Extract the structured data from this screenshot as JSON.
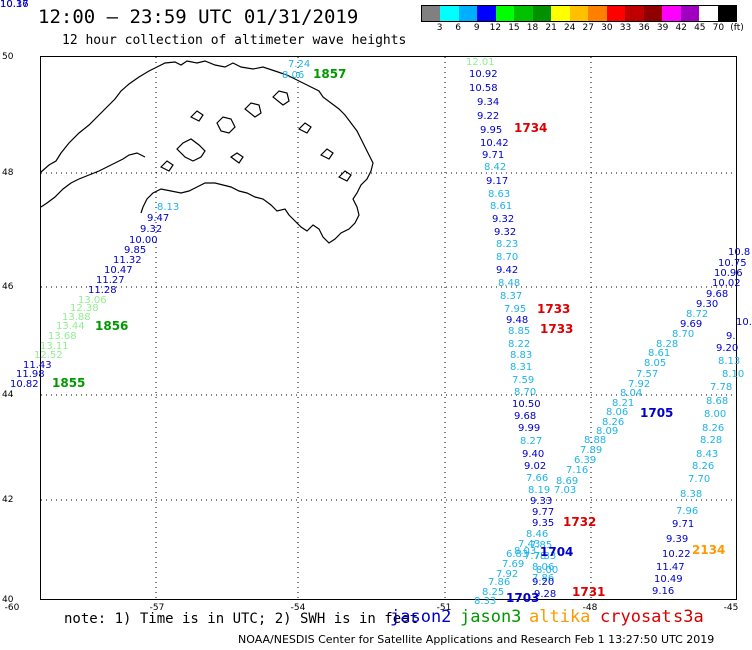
{
  "header": {
    "title": "12:00 — 23:59 UTC 01/31/2019",
    "subtitle": "12 hour collection of altimeter wave heights"
  },
  "scale": {
    "colors": [
      "#808080",
      "#00ffff",
      "#00b0ff",
      "#0000ff",
      "#00ff00",
      "#00c000",
      "#009000",
      "#ffff00",
      "#ffc000",
      "#ff8000",
      "#ff0000",
      "#c00000",
      "#900000",
      "#ff00ff",
      "#a000c0",
      "#ffffff",
      "#000000"
    ],
    "labels": [
      "3",
      "6",
      "9",
      "12",
      "15",
      "18",
      "21",
      "24",
      "27",
      "30",
      "33",
      "36",
      "39",
      "42",
      "45",
      "70",
      "(ft)"
    ]
  },
  "axes": {
    "lat_labels": [
      "50",
      "48",
      "46",
      "44",
      "42",
      "40"
    ],
    "lon_labels": [
      "-60",
      "-57",
      "-54",
      "-51",
      "-48",
      "-45"
    ]
  },
  "colors": {
    "jason2": "#0000cc",
    "jason3": "#009900",
    "altika": "#ff9900",
    "cryosat": "#dd0000",
    "s3a": "#cc0000",
    "light_green": "#90ee90",
    "light_blue": "#1fb4e6"
  },
  "note": "note: 1) Time is in UTC; 2) SWH is in feet",
  "legend": {
    "jason2": "jason2",
    "jason3": "jason3",
    "altika": "altika",
    "cryosat": "cryosat",
    "s3a": "s3a"
  },
  "footer": "NOAA/NESDIS Center for Satellite Applications and Research  Feb  1 13:27:50 UTC 2019",
  "passes": [
    {
      "label": "1857",
      "color": "#009900"
    },
    {
      "label": "1856",
      "color": "#009900"
    },
    {
      "label": "1855",
      "color": "#009900"
    },
    {
      "label": "1734",
      "color": "#dd0000"
    },
    {
      "label": "1733",
      "color": "#dd0000"
    },
    {
      "label": "1733",
      "color": "#dd0000"
    },
    {
      "label": "1732",
      "color": "#dd0000"
    },
    {
      "label": "1731",
      "color": "#dd0000"
    },
    {
      "label": "1705",
      "color": "#0000cc"
    },
    {
      "label": "1704",
      "color": "#0000cc"
    },
    {
      "label": "1703",
      "color": "#0000cc"
    },
    {
      "label": "2134",
      "color": "#ff9900"
    }
  ],
  "observations": [
    {
      "v": "7.24",
      "c": "#1fb4e6"
    },
    {
      "v": "8.06",
      "c": "#1fb4e6"
    },
    {
      "v": "8.13",
      "c": "#1fb4e6"
    },
    {
      "v": "9.47",
      "c": "#0000cc"
    },
    {
      "v": "9.32",
      "c": "#0000cc"
    },
    {
      "v": "10.00",
      "c": "#0000cc"
    },
    {
      "v": "9.85",
      "c": "#0000cc"
    },
    {
      "v": "11.32",
      "c": "#0000cc"
    },
    {
      "v": "10.47",
      "c": "#0000cc"
    },
    {
      "v": "11.27",
      "c": "#0000cc"
    },
    {
      "v": "11.28",
      "c": "#0000cc"
    },
    {
      "v": "13.06",
      "c": "#90ee90"
    },
    {
      "v": "12.38",
      "c": "#90ee90"
    },
    {
      "v": "13.88",
      "c": "#90ee90"
    },
    {
      "v": "13.44",
      "c": "#90ee90"
    },
    {
      "v": "13.68",
      "c": "#90ee90"
    },
    {
      "v": "13.11",
      "c": "#90ee90"
    },
    {
      "v": "12.52",
      "c": "#90ee90"
    },
    {
      "v": "11.43",
      "c": "#0000cc"
    },
    {
      "v": "11.98",
      "c": "#0000cc"
    },
    {
      "v": "10.82",
      "c": "#0000cc"
    },
    {
      "v": "12.01",
      "c": "#90ee90"
    },
    {
      "v": "10.92",
      "c": "#0000cc"
    },
    {
      "v": "10.58",
      "c": "#0000cc"
    },
    {
      "v": "9.34",
      "c": "#0000cc"
    },
    {
      "v": "9.22",
      "c": "#0000cc"
    },
    {
      "v": "9.95",
      "c": "#0000cc"
    },
    {
      "v": "10.42",
      "c": "#0000cc"
    },
    {
      "v": "9.71",
      "c": "#0000cc"
    },
    {
      "v": "8.42",
      "c": "#1fb4e6"
    },
    {
      "v": "9.17",
      "c": "#0000cc"
    },
    {
      "v": "8.63",
      "c": "#1fb4e6"
    },
    {
      "v": "8.61",
      "c": "#1fb4e6"
    },
    {
      "v": "9.32",
      "c": "#0000cc"
    },
    {
      "v": "9.32",
      "c": "#0000cc"
    },
    {
      "v": "8.23",
      "c": "#1fb4e6"
    },
    {
      "v": "8.70",
      "c": "#1fb4e6"
    },
    {
      "v": "9.42",
      "c": "#0000cc"
    },
    {
      "v": "8.48",
      "c": "#1fb4e6"
    },
    {
      "v": "8.37",
      "c": "#1fb4e6"
    },
    {
      "v": "7.95",
      "c": "#1fb4e6"
    },
    {
      "v": "9.48",
      "c": "#0000cc"
    },
    {
      "v": "8.85",
      "c": "#1fb4e6"
    },
    {
      "v": "8.22",
      "c": "#1fb4e6"
    },
    {
      "v": "8.83",
      "c": "#1fb4e6"
    },
    {
      "v": "8.31",
      "c": "#1fb4e6"
    },
    {
      "v": "7.59",
      "c": "#1fb4e6"
    },
    {
      "v": "8.70",
      "c": "#1fb4e6"
    },
    {
      "v": "10.50",
      "c": "#0000cc"
    },
    {
      "v": "9.68",
      "c": "#0000cc"
    },
    {
      "v": "9.99",
      "c": "#0000cc"
    },
    {
      "v": "8.27",
      "c": "#1fb4e6"
    },
    {
      "v": "9.40",
      "c": "#0000cc"
    },
    {
      "v": "9.02",
      "c": "#0000cc"
    },
    {
      "v": "7.66",
      "c": "#1fb4e6"
    },
    {
      "v": "8.19",
      "c": "#1fb4e6"
    },
    {
      "v": "9.33",
      "c": "#0000cc"
    },
    {
      "v": "7.03",
      "c": "#1fb4e6"
    },
    {
      "v": "8.69",
      "c": "#1fb4e6"
    },
    {
      "v": "7.16",
      "c": "#1fb4e6"
    },
    {
      "v": "6.39",
      "c": "#1fb4e6"
    },
    {
      "v": "7.89",
      "c": "#1fb4e6"
    },
    {
      "v": "8.88",
      "c": "#1fb4e6"
    },
    {
      "v": "8.09",
      "c": "#1fb4e6"
    },
    {
      "v": "8.26",
      "c": "#1fb4e6"
    },
    {
      "v": "8.06",
      "c": "#1fb4e6"
    },
    {
      "v": "8.21",
      "c": "#1fb4e6"
    },
    {
      "v": "8.04",
      "c": "#1fb4e6"
    },
    {
      "v": "7.92",
      "c": "#1fb4e6"
    },
    {
      "v": "7.57",
      "c": "#1fb4e6"
    },
    {
      "v": "8.05",
      "c": "#1fb4e6"
    },
    {
      "v": "8.61",
      "c": "#1fb4e6"
    },
    {
      "v": "8.28",
      "c": "#1fb4e6"
    },
    {
      "v": "8.70",
      "c": "#1fb4e6"
    },
    {
      "v": "9.69",
      "c": "#0000cc"
    },
    {
      "v": "8.72",
      "c": "#1fb4e6"
    },
    {
      "v": "9.30",
      "c": "#0000cc"
    },
    {
      "v": "9.68",
      "c": "#0000cc"
    },
    {
      "v": "10.02",
      "c": "#0000cc"
    },
    {
      "v": "10.96",
      "c": "#0000cc"
    },
    {
      "v": "10.75",
      "c": "#0000cc"
    },
    {
      "v": "10.8",
      "c": "#0000cc"
    },
    {
      "v": "10.",
      "c": "#0000cc"
    },
    {
      "v": "9.",
      "c": "#0000cc"
    },
    {
      "v": "9.20",
      "c": "#0000cc"
    },
    {
      "v": "8.13",
      "c": "#1fb4e6"
    },
    {
      "v": "8.10",
      "c": "#1fb4e6"
    },
    {
      "v": "7.78",
      "c": "#1fb4e6"
    },
    {
      "v": "8.68",
      "c": "#1fb4e6"
    },
    {
      "v": "8.00",
      "c": "#1fb4e6"
    },
    {
      "v": "8.26",
      "c": "#1fb4e6"
    },
    {
      "v": "8.28",
      "c": "#1fb4e6"
    },
    {
      "v": "8.43",
      "c": "#1fb4e6"
    },
    {
      "v": "8.26",
      "c": "#1fb4e6"
    },
    {
      "v": "7.70",
      "c": "#1fb4e6"
    },
    {
      "v": "8.38",
      "c": "#1fb4e6"
    },
    {
      "v": "7.96",
      "c": "#1fb4e6"
    },
    {
      "v": "9.71",
      "c": "#0000cc"
    },
    {
      "v": "9.39",
      "c": "#0000cc"
    },
    {
      "v": "10.22",
      "c": "#0000cc"
    },
    {
      "v": "11.47",
      "c": "#0000cc"
    },
    {
      "v": "10.49",
      "c": "#0000cc"
    },
    {
      "v": "9.16",
      "c": "#0000cc"
    },
    {
      "v": "9.77",
      "c": "#0000cc"
    },
    {
      "v": "9.35",
      "c": "#0000cc"
    },
    {
      "v": "8.46",
      "c": "#1fb4e6"
    },
    {
      "v": "7.85",
      "c": "#1fb4e6"
    },
    {
      "v": "7.78",
      "c": "#1fb4e6"
    },
    {
      "v": "8.06",
      "c": "#1fb4e6"
    },
    {
      "v": "7.86",
      "c": "#1fb4e6"
    },
    {
      "v": "7.43",
      "c": "#1fb4e6"
    },
    {
      "v": "8.03",
      "c": "#1fb4e6"
    },
    {
      "v": "6.83",
      "c": "#1fb4e6"
    },
    {
      "v": "7.69",
      "c": "#1fb4e6"
    },
    {
      "v": "7.92",
      "c": "#1fb4e6"
    },
    {
      "v": "7.86",
      "c": "#1fb4e6"
    },
    {
      "v": "8.25",
      "c": "#1fb4e6"
    },
    {
      "v": "8.33",
      "c": "#1fb4e6"
    },
    {
      "v": "7.33",
      "c": "#1fb4e6"
    },
    {
      "v": "8.00",
      "c": "#1fb4e6"
    },
    {
      "v": "9.20",
      "c": "#0000cc"
    },
    {
      "v": "9.28",
      "c": "#0000cc"
    },
    {
      "v": "10.17",
      "c": "#0000cc"
    },
    {
      "v": "10.36",
      "c": "#0000cc"
    }
  ]
}
